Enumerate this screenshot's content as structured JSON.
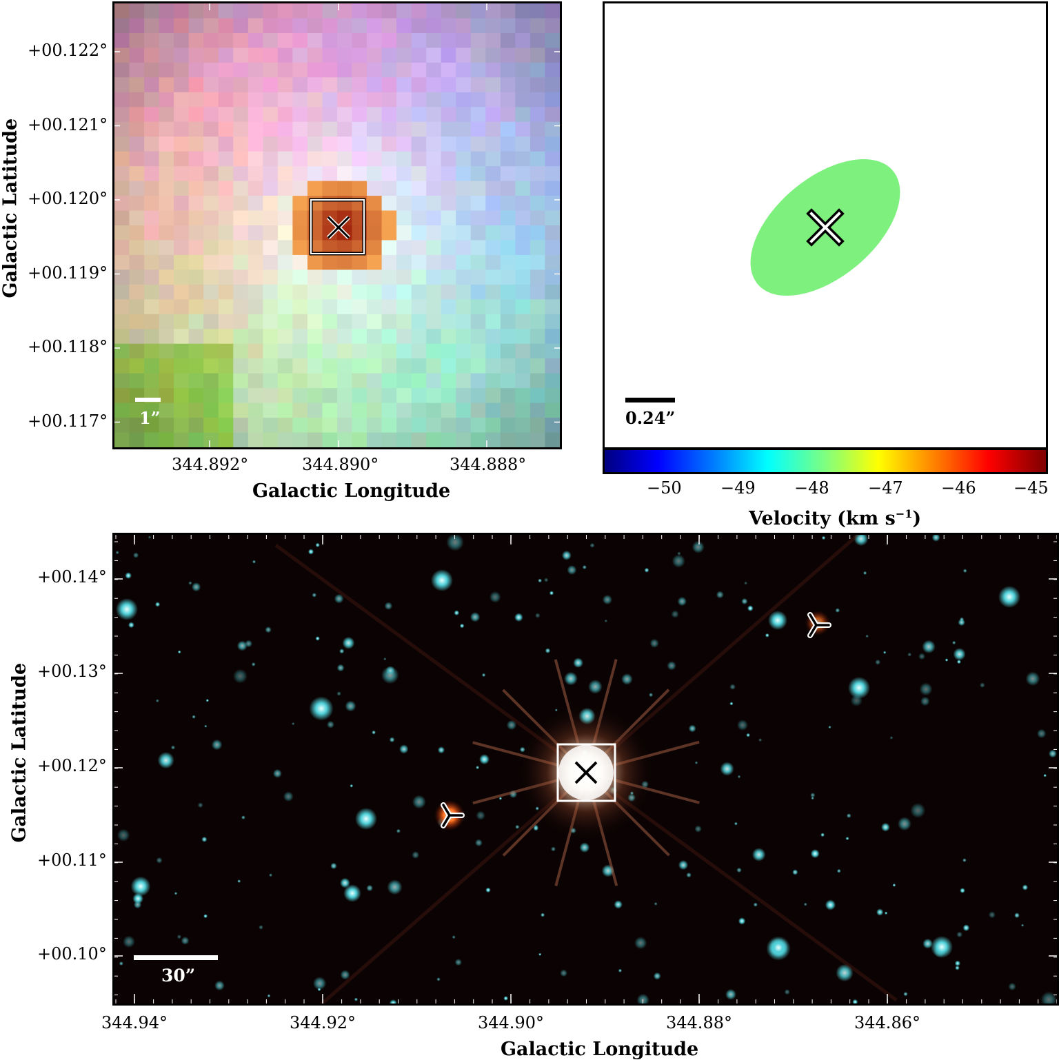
{
  "top_left": {
    "y_ticks": [
      "+00.122°",
      "+00.121°",
      "+00.120°",
      "+00.119°",
      "+00.118°",
      "+00.117°"
    ],
    "x_ticks": [
      "344.892°",
      "344.890°",
      "344.888°"
    ],
    "xlabel": "Galactic Longitude",
    "ylabel": "Galactic Latitude",
    "scale_bar": "1”"
  },
  "top_right": {
    "scale_bar": "0.24”",
    "ellipse_color": "#7ef07e",
    "colorbar": {
      "ticks": [
        "−50",
        "−49",
        "−48",
        "−47",
        "−46",
        "−45"
      ],
      "label": "Velocity (km s",
      "label_sup": "−1",
      "label_end": ")"
    }
  },
  "bottom": {
    "y_ticks": [
      "+00.14°",
      "+00.13°",
      "+00.12°",
      "+00.11°",
      "+00.10°"
    ],
    "x_ticks": [
      "344.94°",
      "344.92°",
      "344.90°",
      "344.88°",
      "344.86°"
    ],
    "xlabel": "Galactic Longitude",
    "ylabel": "Galactic Latitude",
    "scale_bar": "30”"
  }
}
